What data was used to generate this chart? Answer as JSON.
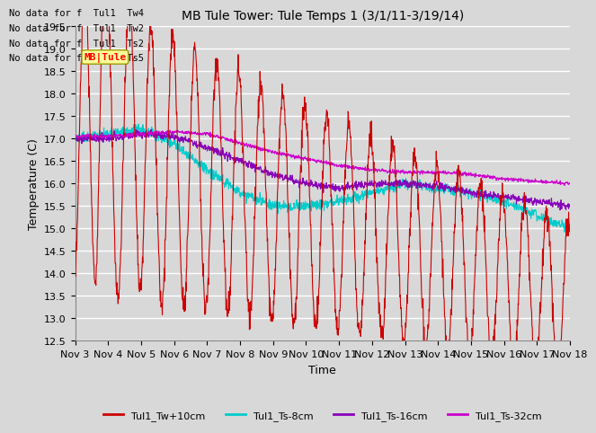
{
  "title": "MB Tule Tower: Tule Temps 1 (3/1/11-3/19/14)",
  "xlabel": "Time",
  "ylabel": "Temperature (C)",
  "ylim": [
    12.5,
    19.5
  ],
  "xlim": [
    0,
    15
  ],
  "x_tick_labels": [
    "Nov 3",
    "Nov 4",
    "Nov 5",
    "Nov 6",
    "Nov 7",
    "Nov 8",
    "Nov 9",
    "Nov 10",
    "Nov 11",
    "Nov 12",
    "Nov 13",
    "Nov 14",
    "Nov 15",
    "Nov 16",
    "Nov 17",
    "Nov 18"
  ],
  "legend_labels": [
    "Tul1_Tw+10cm",
    "Tul1_Ts-8cm",
    "Tul1_Ts-16cm",
    "Tul1_Ts-32cm"
  ],
  "line_colors": [
    "#cc0000",
    "#00cccc",
    "#8800bb",
    "#cc00cc"
  ],
  "no_data_texts": [
    "No data for f  Tul1  Tw4",
    "No data for f  Tul1  Tw2",
    "No data for f  Tul1  Ts2",
    "No data for f  Tul1  Ts5"
  ],
  "bg_color": "#d8d8d8",
  "plot_bg_color": "#d8d8d8",
  "grid_color": "#ffffff",
  "title_fontsize": 10,
  "axis_fontsize": 9,
  "tick_fontsize": 8
}
